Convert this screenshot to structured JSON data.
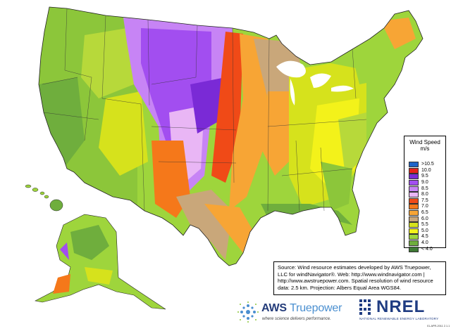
{
  "legend": {
    "title": "Wind Speed",
    "units": "m/s",
    "items": [
      {
        "label": ">10.5",
        "color": "#1f64c8"
      },
      {
        "label": "10.0",
        "color": "#e8221b"
      },
      {
        "label": "9.5",
        "color": "#7a2ad6"
      },
      {
        "label": "9.0",
        "color": "#a24ef0"
      },
      {
        "label": "8.5",
        "color": "#c784f5"
      },
      {
        "label": "8.0",
        "color": "#e9b6f5"
      },
      {
        "label": "7.5",
        "color": "#f04a17"
      },
      {
        "label": "7.0",
        "color": "#f5781a"
      },
      {
        "label": "6.5",
        "color": "#f7a535"
      },
      {
        "label": "6.0",
        "color": "#c9a77a"
      },
      {
        "label": "5.5",
        "color": "#d6e21c"
      },
      {
        "label": "5.0",
        "color": "#f3f21a"
      },
      {
        "label": "4.5",
        "color": "#9ed53c"
      },
      {
        "label": "4.0",
        "color": "#6fae3d"
      },
      {
        "label": "< 4.0",
        "color": "#3f7a35"
      }
    ]
  },
  "source": {
    "line1": "Source: Wind resource estimates developed by AWS Truepower,",
    "line2": "LLC for windNavigator®. Web: http://www.windnavigator.com |",
    "line3": "http://www.awstruepower.com. Spatial resolution of wind resource",
    "line4": "data: 2.5 km. Projection: Albers Equal Area WGS84."
  },
  "logos": {
    "aws_name": "AWS",
    "aws_name2": "Truepower",
    "aws_tag": "where science delivers performance.",
    "nrel_word": "NREL",
    "nrel_sub": "NATIONAL RENEWABLE ENERGY LABORATORY"
  },
  "stamp": "01-APR-2011 2.1.1"
}
